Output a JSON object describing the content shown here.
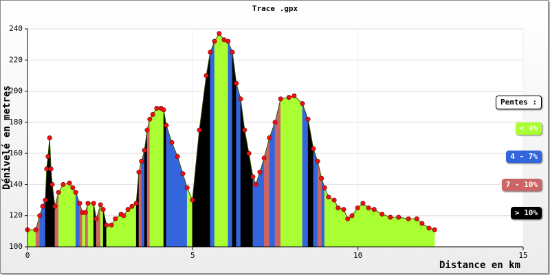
{
  "chart_data": {
    "type": "area",
    "title": "Trace .gpx",
    "x_label": "Distance en km",
    "y_label": "Dénivelé en metres",
    "xlim": [
      0,
      15
    ],
    "xticks": [
      0,
      5,
      10,
      15
    ],
    "ylim": [
      100,
      240
    ],
    "yticks": [
      100,
      120,
      140,
      160,
      180,
      200,
      220,
      240
    ],
    "grid": true,
    "point_color": "#ee1111",
    "line_color": "#335500",
    "x": [
      0,
      0.25,
      0.37,
      0.46,
      0.54,
      0.58,
      0.62,
      0.67,
      0.71,
      0.75,
      0.83,
      0.94,
      1.08,
      1.27,
      1.37,
      1.46,
      1.58,
      1.66,
      1.75,
      1.83,
      2.0,
      2.08,
      2.21,
      2.29,
      2.39,
      2.54,
      2.66,
      2.83,
      2.91,
      3.04,
      3.16,
      3.29,
      3.37,
      3.45,
      3.54,
      3.62,
      3.7,
      3.79,
      3.91,
      4.04,
      4.12,
      4.2,
      4.37,
      4.54,
      4.7,
      4.83,
      4.99,
      5.2,
      5.41,
      5.53,
      5.66,
      5.8,
      5.95,
      6.07,
      6.2,
      6.32,
      6.45,
      6.57,
      6.7,
      6.82,
      6.91,
      7.03,
      7.16,
      7.32,
      7.49,
      7.66,
      7.91,
      8.07,
      8.32,
      8.49,
      8.65,
      8.78,
      8.9,
      8.99,
      9.11,
      9.28,
      9.4,
      9.57,
      9.69,
      9.82,
      9.99,
      10.15,
      10.32,
      10.49,
      10.73,
      10.98,
      11.23,
      11.53,
      11.78,
      11.94,
      12.15,
      12.32
    ],
    "y": [
      111,
      111,
      120,
      126,
      130,
      150,
      158,
      170,
      150,
      140,
      126,
      135,
      140,
      141,
      138,
      135,
      128,
      122,
      122,
      128,
      128,
      118,
      127,
      124,
      114,
      114,
      118,
      121,
      120,
      124,
      126,
      128,
      148,
      155,
      162,
      175,
      182,
      185,
      189,
      189,
      188,
      178,
      167,
      158,
      147,
      138,
      130,
      175,
      210,
      225,
      232,
      237,
      233,
      232,
      225,
      205,
      195,
      175,
      160,
      145,
      140,
      148,
      157,
      170,
      180,
      195,
      196,
      197,
      192,
      182,
      163,
      155,
      144,
      138,
      132,
      130,
      125,
      124,
      118,
      120,
      125,
      128,
      125,
      124,
      121,
      119,
      119,
      118,
      118,
      115,
      112,
      111
    ],
    "segment_colors": [
      "#aaff33",
      "#cc6666",
      "#3366dd",
      "#3366dd",
      "#000000",
      "#000000",
      "#000000",
      "#000000",
      "#000000",
      "#000000",
      "#cc6666",
      "#aaff33",
      "#aaff33",
      "#aaff33",
      "#aaff33",
      "#3366dd",
      "#cc6666",
      "#aaff33",
      "#cc6666",
      "#aaff33",
      "#000000",
      "#cc6666",
      "#aaff33",
      "#000000",
      "#aaff33",
      "#aaff33",
      "#aaff33",
      "#aaff33",
      "#aaff33",
      "#aaff33",
      "#aaff33",
      "#000000",
      "#cc6666",
      "#3366dd",
      "#000000",
      "#cc6666",
      "#aaff33",
      "#aaff33",
      "#aaff33",
      "#aaff33",
      "#000000",
      "#3366dd",
      "#3366dd",
      "#3366dd",
      "#3366dd",
      "#aaff33",
      "#000000",
      "#000000",
      "#000000",
      "#3366dd",
      "#aaff33",
      "#aaff33",
      "#aaff33",
      "#3366dd",
      "#000000",
      "#3366dd",
      "#000000",
      "#000000",
      "#000000",
      "#3366dd",
      "#3366dd",
      "#3366dd",
      "#cc6666",
      "#3366dd",
      "#cc6666",
      "#aaff33",
      "#aaff33",
      "#aaff33",
      "#3366dd",
      "#000000",
      "#3366dd",
      "#cc6666",
      "#3366dd",
      "#aaff33",
      "#aaff33",
      "#aaff33",
      "#aaff33",
      "#aaff33",
      "#aaff33",
      "#aaff33",
      "#aaff33",
      "#aaff33",
      "#aaff33",
      "#aaff33",
      "#aaff33",
      "#aaff33",
      "#aaff33",
      "#aaff33",
      "#aaff33",
      "#aaff33",
      "#aaff33"
    ],
    "legend": {
      "title": "Pentes :",
      "position": "right",
      "items": [
        {
          "name": "< 4%",
          "color": "#aaff33",
          "text_color": "#ffffff"
        },
        {
          "name": "4 - 7%",
          "color": "#3366dd",
          "text_color": "#ffffff"
        },
        {
          "name": "7 - 10%",
          "color": "#cc6666",
          "text_color": "#ffffff"
        },
        {
          "name": "> 10%",
          "color": "#000000",
          "text_color": "#ffffff"
        }
      ]
    }
  }
}
